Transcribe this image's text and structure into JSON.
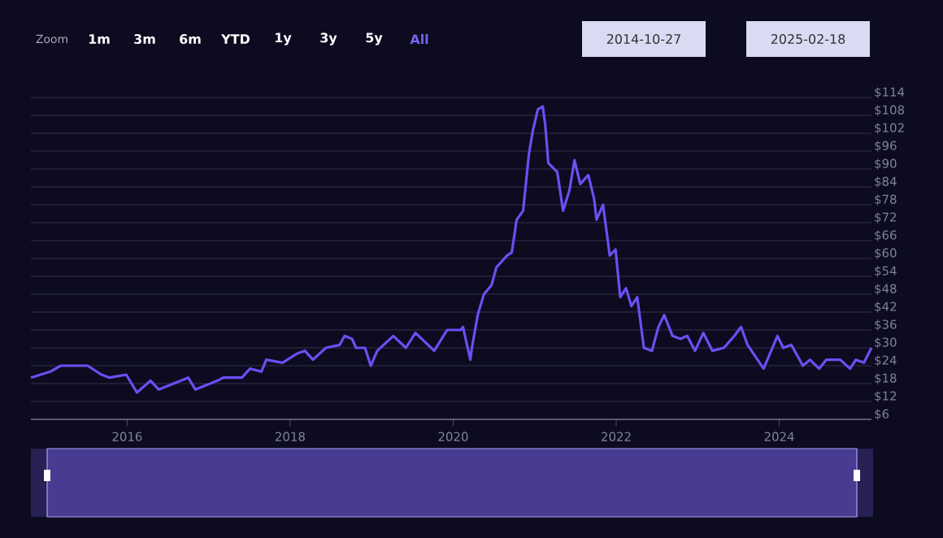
{
  "chart_data": {
    "type": "line",
    "annotations": [
      "Zoom",
      "1m",
      "3m",
      "6m",
      "YTD",
      "1y",
      "3y",
      "5y",
      "All",
      "2014-10-27",
      "2025-02-18"
    ],
    "x": [
      "2014-10-27",
      "2015-01-22",
      "2015-03-10",
      "2015-07-08",
      "2015-09-08",
      "2015-10-15",
      "2015-12-28",
      "2016-02-14",
      "2016-04-15",
      "2016-05-22",
      "2016-10-01",
      "2016-11-03",
      "2017-02-10",
      "2017-03-08",
      "2017-05-30",
      "2017-07-05",
      "2017-08-25",
      "2017-09-16",
      "2017-11-28",
      "2018-01-30",
      "2018-03-08",
      "2018-04-13",
      "2018-06-10",
      "2018-08-11",
      "2018-09-02",
      "2018-10-05",
      "2018-10-23",
      "2018-12-02",
      "2018-12-28",
      "2019-01-26",
      "2019-04-08",
      "2019-06-03",
      "2019-07-16",
      "2019-10-08",
      "2019-12-05",
      "2020-02-04",
      "2020-02-14",
      "2020-03-18",
      "2020-03-25",
      "2020-04-20",
      "2020-05-18",
      "2020-06-21",
      "2020-07-13",
      "2020-08-30",
      "2020-09-20",
      "2020-10-12",
      "2020-11-10",
      "2020-12-06",
      "2020-12-24",
      "2021-01-15",
      "2021-02-06",
      "2021-02-17",
      "2021-03-03",
      "2021-04-12",
      "2021-05-08",
      "2021-06-06",
      "2021-06-28",
      "2021-07-24",
      "2021-08-29",
      "2021-09-24",
      "2021-10-05",
      "2021-11-03",
      "2021-12-03",
      "2021-12-29",
      "2022-01-19",
      "2022-02-14",
      "2022-03-10",
      "2022-04-05",
      "2022-05-05",
      "2022-06-10",
      "2022-07-09",
      "2022-08-04",
      "2022-09-10",
      "2022-10-16",
      "2022-11-15",
      "2022-12-20",
      "2023-01-26",
      "2023-03-08",
      "2023-04-28",
      "2023-06-14",
      "2023-07-14",
      "2023-08-12",
      "2023-10-23",
      "2023-12-24",
      "2024-01-19",
      "2024-02-24",
      "2024-04-16",
      "2024-05-18",
      "2024-06-28",
      "2024-07-30",
      "2024-10-01",
      "2024-11-14",
      "2024-12-10",
      "2025-01-15",
      "2025-02-18"
    ],
    "series": [
      {
        "color": "#6c4ef2",
        "values": [
          20,
          22,
          24,
          24,
          21,
          20,
          21,
          15,
          19,
          16,
          20,
          16,
          19,
          20,
          20,
          23,
          22,
          26,
          25,
          28,
          29,
          26,
          30,
          31,
          34,
          33,
          30,
          30,
          24,
          29,
          34,
          30,
          35,
          29,
          36,
          36,
          37,
          26,
          30,
          41,
          48,
          51,
          57,
          61,
          62,
          73,
          76,
          95,
          103,
          110,
          111,
          105,
          92,
          89,
          76,
          83,
          93,
          85,
          88,
          80,
          73,
          78,
          61,
          63,
          47,
          50,
          44,
          47,
          30,
          29,
          37,
          41,
          34,
          33,
          34,
          29,
          35,
          29,
          30,
          34,
          37,
          31,
          23,
          34,
          30,
          31,
          24,
          26,
          23,
          26,
          26,
          23,
          26,
          25,
          30
        ]
      }
    ],
    "xlim": [
      "2014-10-27",
      "2025-02-18"
    ],
    "xticks": [
      {
        "value": "2016-01-01",
        "label": "2016"
      },
      {
        "value": "2018-01-01",
        "label": "2018"
      },
      {
        "value": "2020-01-01",
        "label": "2020"
      },
      {
        "value": "2022-01-01",
        "label": "2022"
      },
      {
        "value": "2024-01-01",
        "label": "2024"
      }
    ],
    "ylim": [
      6,
      114
    ],
    "yticks": [
      {
        "value": 6,
        "label": "$6"
      },
      {
        "value": 12,
        "label": "$12"
      },
      {
        "value": 18,
        "label": "$18"
      },
      {
        "value": 24,
        "label": "$24"
      },
      {
        "value": 30,
        "label": "$30"
      },
      {
        "value": 36,
        "label": "$36"
      },
      {
        "value": 42,
        "label": "$42"
      },
      {
        "value": 48,
        "label": "$48"
      },
      {
        "value": 54,
        "label": "$54"
      },
      {
        "value": 60,
        "label": "$60"
      },
      {
        "value": 66,
        "label": "$66"
      },
      {
        "value": 72,
        "label": "$72"
      },
      {
        "value": 78,
        "label": "$78"
      },
      {
        "value": 84,
        "label": "$84"
      },
      {
        "value": 90,
        "label": "$90"
      },
      {
        "value": 96,
        "label": "$96"
      },
      {
        "value": 102,
        "label": "$102"
      },
      {
        "value": 108,
        "label": "$108"
      },
      {
        "value": 114,
        "label": "$114"
      }
    ],
    "grid": "y"
  }
}
